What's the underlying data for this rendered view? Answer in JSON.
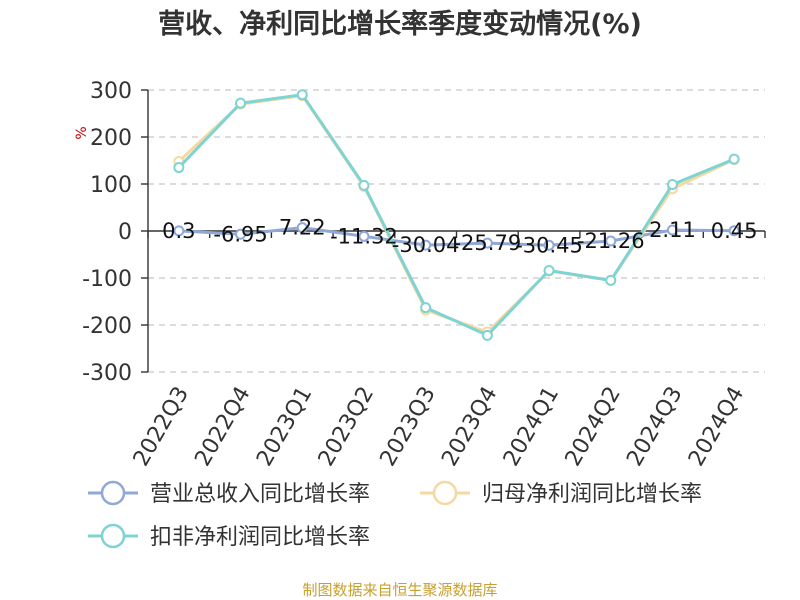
{
  "chart_data": {
    "type": "line",
    "title": "营收、净利同比增长率季度变动情况(%)",
    "ylabel": "%",
    "ylim": [
      -300,
      300
    ],
    "yticks": [
      300,
      200,
      100,
      0,
      -100,
      -200,
      -300
    ],
    "grid": true,
    "legend_position": "bottom",
    "categories": [
      "2022Q3",
      "2022Q4",
      "2023Q1",
      "2023Q2",
      "2023Q3",
      "2023Q4",
      "2024Q1",
      "2024Q2",
      "2024Q3",
      "2024Q4"
    ],
    "series": [
      {
        "name": "营业总收入同比增长率",
        "color": "#8fa8d8",
        "values": [
          0.3,
          -6.95,
          7.22,
          -11.32,
          -30.04,
          -25.79,
          -30.45,
          -21.26,
          2.11,
          0.45
        ],
        "labels": [
          "0.3",
          "-6.95",
          "7.22",
          "-11.32",
          "-30.04",
          "-25.79",
          "-30.45",
          "-21.26",
          "2.11",
          "0.45"
        ]
      },
      {
        "name": "归母净利润同比增长率",
        "color": "#f5d9a0",
        "values": [
          148,
          270,
          288,
          95,
          -168,
          -215,
          -85,
          -105,
          90,
          152
        ]
      },
      {
        "name": "扣非净利润同比增长率",
        "color": "#7ed3d3",
        "values": [
          135,
          272,
          290,
          97,
          -163,
          -222,
          -84,
          -105,
          99,
          153
        ]
      }
    ]
  },
  "source": "制图数据来自恒生聚源数据库"
}
